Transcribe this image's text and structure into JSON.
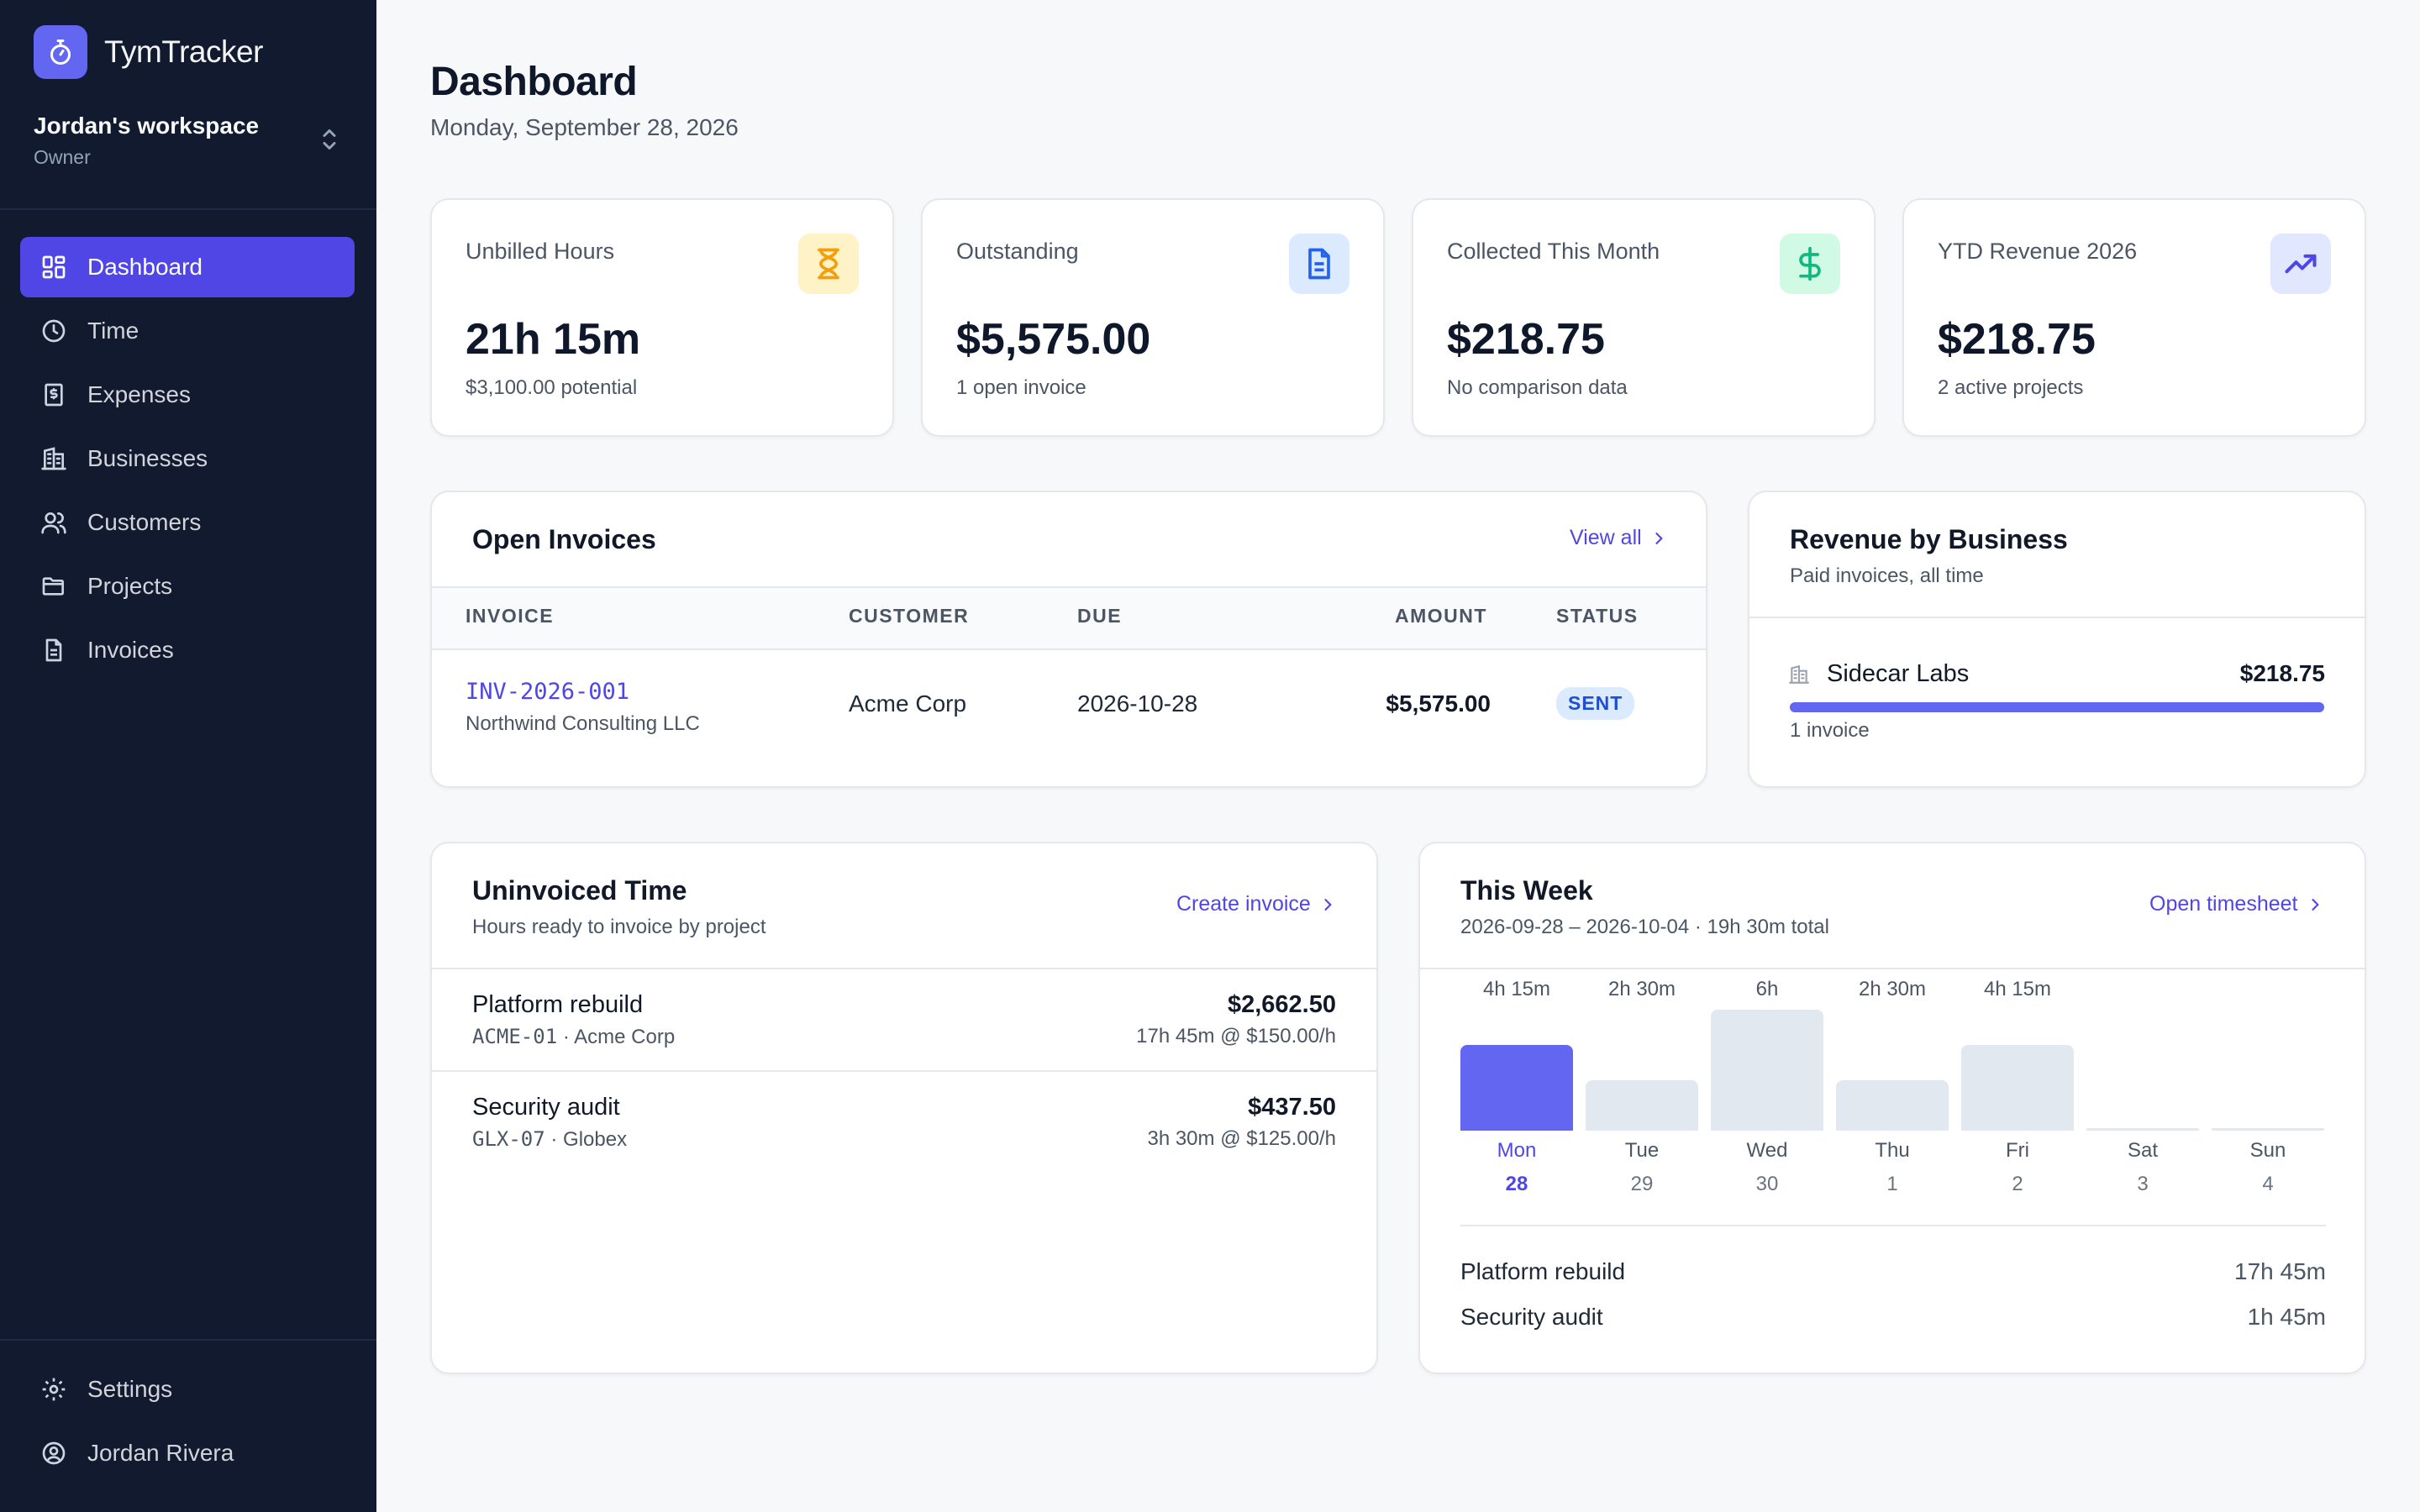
{
  "brand": {
    "name": "TymTracker"
  },
  "workspace": {
    "name": "Jordan's workspace",
    "role": "Owner"
  },
  "nav": {
    "items": [
      {
        "label": "Dashboard",
        "icon": "dashboard-icon",
        "active": true
      },
      {
        "label": "Time",
        "icon": "clock-icon"
      },
      {
        "label": "Expenses",
        "icon": "receipt-icon"
      },
      {
        "label": "Businesses",
        "icon": "building-icon"
      },
      {
        "label": "Customers",
        "icon": "users-icon"
      },
      {
        "label": "Projects",
        "icon": "folder-icon"
      },
      {
        "label": "Invoices",
        "icon": "document-icon"
      }
    ],
    "settings_label": "Settings",
    "user_label": "Jordan Rivera"
  },
  "header": {
    "title": "Dashboard",
    "date": "Monday, September 28, 2026"
  },
  "stats": [
    {
      "label": "Unbilled Hours",
      "value": "21h 15m",
      "sub": "$3,100.00 potential",
      "icon": "hourglass-icon",
      "color": "#f59e0b"
    },
    {
      "label": "Outstanding",
      "value": "$5,575.00",
      "sub": "1 open invoice",
      "icon": "document-icon",
      "color": "#2563eb"
    },
    {
      "label": "Collected This Month",
      "value": "$218.75",
      "sub": "No comparison data",
      "icon": "dollar-icon",
      "color": "#10b981"
    },
    {
      "label": "YTD Revenue 2026",
      "value": "$218.75",
      "sub": "2 active projects",
      "icon": "trending-up-icon",
      "color": "#4f46e5"
    }
  ],
  "open_invoices": {
    "title": "Open Invoices",
    "view_all": "View all",
    "columns": [
      "INVOICE",
      "CUSTOMER",
      "DUE",
      "AMOUNT",
      "STATUS"
    ],
    "rows": [
      {
        "number": "INV-2026-001",
        "business": "Northwind Consulting LLC",
        "customer": "Acme Corp",
        "due": "2026-10-28",
        "amount": "$5,575.00",
        "status": "SENT"
      }
    ]
  },
  "revenue_by_business": {
    "title": "Revenue by Business",
    "subtitle": "Paid invoices, all time",
    "items": [
      {
        "name": "Sidecar Labs",
        "amount": "$218.75",
        "count": "1 invoice",
        "share": 1.0
      }
    ]
  },
  "uninvoiced": {
    "title": "Uninvoiced Time",
    "subtitle": "Hours ready to invoice by project",
    "create_label": "Create invoice",
    "items": [
      {
        "name": "Platform rebuild",
        "code": "ACME-01",
        "customer": "· Acme Corp",
        "amount": "$2,662.50",
        "detail": "17h 45m @ $150.00/h"
      },
      {
        "name": "Security audit",
        "code": "GLX-07",
        "customer": "· Globex",
        "amount": "$437.50",
        "detail": "3h 30m @ $125.00/h"
      }
    ]
  },
  "this_week": {
    "title": "This Week",
    "subtitle": "2026-09-28 – 2026-10-04 · 19h 30m total",
    "open_label": "Open timesheet",
    "days": [
      {
        "name": "Mon",
        "num": "28",
        "label": "4h 15m",
        "hours": 4.25,
        "today": true
      },
      {
        "name": "Tue",
        "num": "29",
        "label": "2h 30m",
        "hours": 2.5
      },
      {
        "name": "Wed",
        "num": "30",
        "label": "6h",
        "hours": 6
      },
      {
        "name": "Thu",
        "num": "1",
        "label": "2h 30m",
        "hours": 2.5
      },
      {
        "name": "Fri",
        "num": "2",
        "label": "4h 15m",
        "hours": 4.25
      },
      {
        "name": "Sat",
        "num": "3",
        "label": "",
        "hours": 0
      },
      {
        "name": "Sun",
        "num": "4",
        "label": "",
        "hours": 0
      }
    ],
    "projects": [
      {
        "name": "Platform rebuild",
        "total": "17h 45m"
      },
      {
        "name": "Security audit",
        "total": "1h 45m"
      }
    ]
  }
}
